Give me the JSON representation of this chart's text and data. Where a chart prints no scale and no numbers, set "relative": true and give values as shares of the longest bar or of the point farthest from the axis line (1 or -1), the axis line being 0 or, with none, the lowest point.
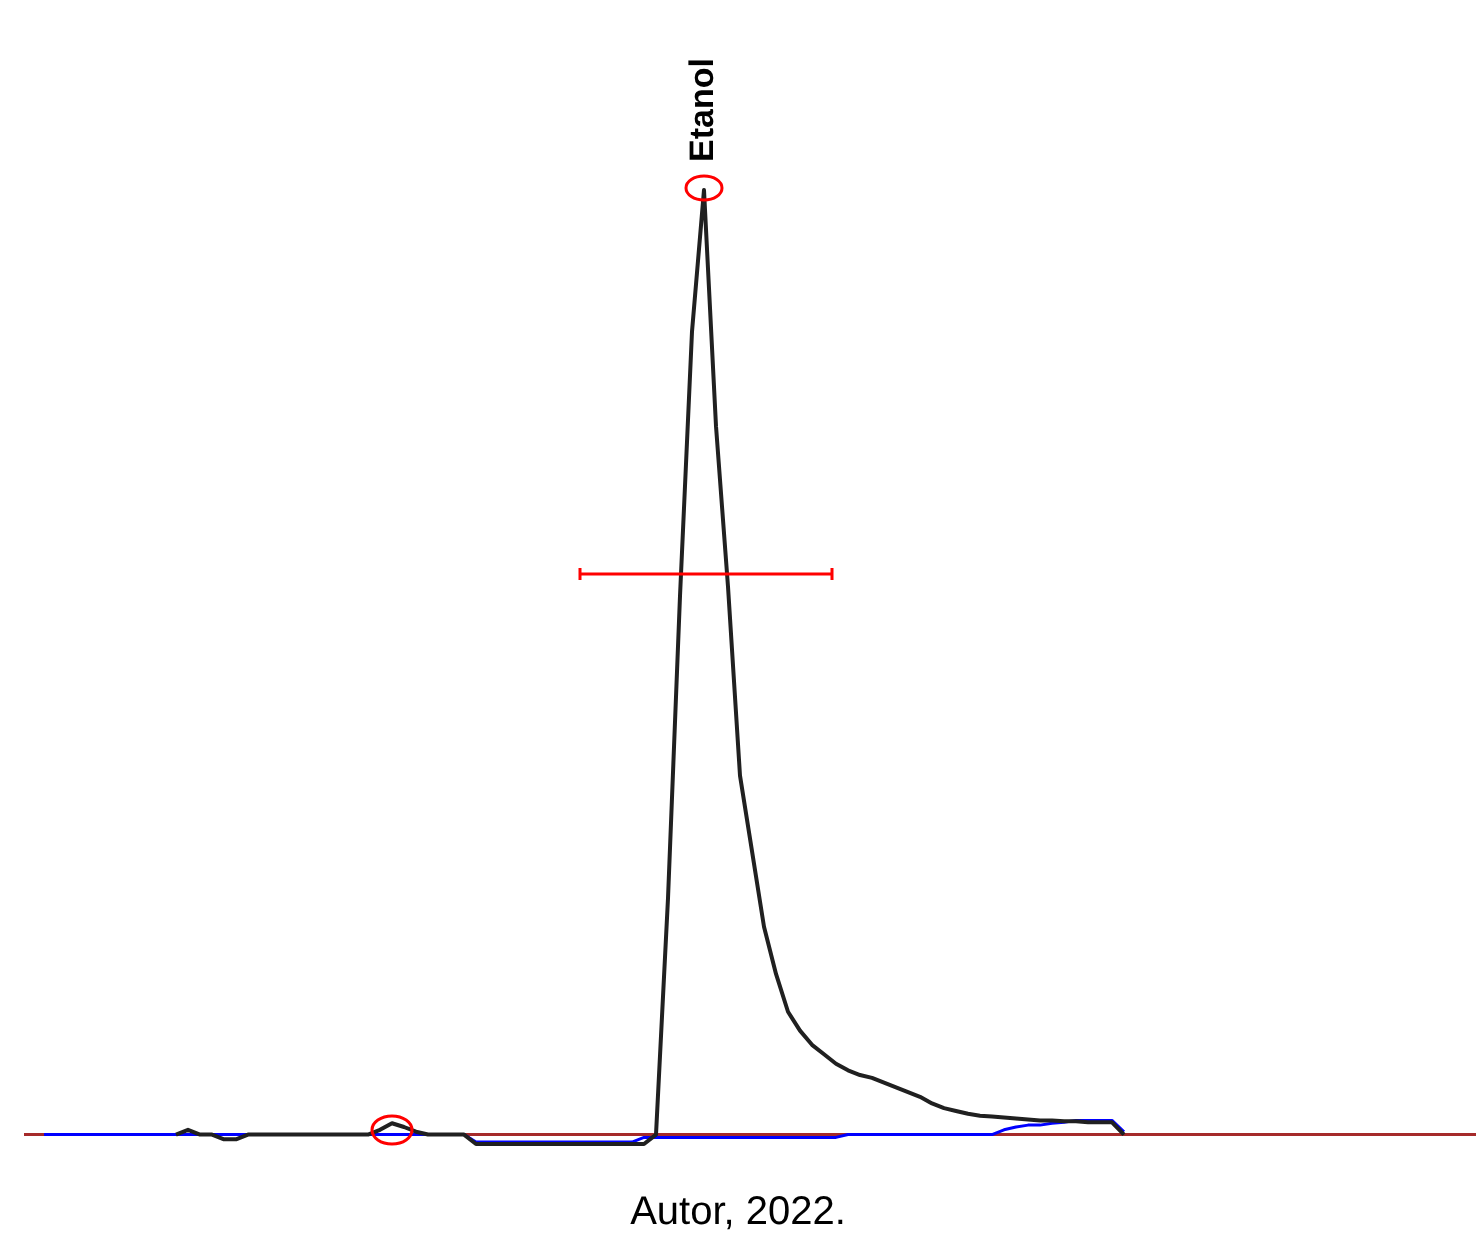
{
  "chart_data": {
    "type": "line",
    "relative": true,
    "categories": [
      null,
      null,
      null,
      null,
      null,
      null,
      null,
      null,
      null,
      null,
      null,
      null,
      null,
      null,
      null,
      null,
      null,
      null,
      null,
      null,
      null,
      null,
      null,
      null,
      null,
      null,
      null,
      null,
      null,
      null,
      null,
      null,
      null,
      null,
      null,
      null,
      null,
      null,
      null,
      null,
      null,
      null,
      null,
      null,
      null,
      null,
      null,
      null,
      null,
      null,
      null,
      null,
      null,
      null,
      null,
      null,
      null,
      null,
      null,
      null,
      null,
      null,
      null,
      null,
      null,
      null,
      null,
      null,
      null,
      null,
      null,
      null,
      null,
      null,
      null,
      null,
      null,
      null,
      null,
      null,
      null,
      null,
      null,
      null,
      null,
      null,
      null,
      null,
      null,
      null,
      null
    ],
    "series": [
      {
        "color": "#202020",
        "values": [
          null,
          null,
          null,
          null,
          null,
          null,
          null,
          null,
          null,
          null,
          null,
          0,
          0.005,
          0,
          0,
          -0.005,
          -0.005,
          0,
          0,
          0,
          0,
          0,
          0,
          0,
          0,
          0,
          0,
          0,
          0.005,
          0.012,
          0.008,
          0.003,
          0,
          0,
          0,
          0,
          -0.01,
          -0.01,
          -0.01,
          -0.01,
          -0.01,
          -0.01,
          -0.01,
          -0.01,
          -0.01,
          -0.01,
          -0.01,
          -0.01,
          -0.01,
          -0.01,
          -0.01,
          0,
          0.25,
          0.57,
          0.85,
          1,
          0.75,
          0.58,
          0.38,
          0.3,
          0.22,
          0.17,
          0.13,
          0.11,
          0.095,
          0.085,
          0.075,
          0.068,
          0.063,
          0.06,
          0.055,
          0.05,
          0.045,
          0.04,
          0.033,
          0.028,
          0.025,
          0.022,
          0.02,
          0.019,
          0.018,
          0.017,
          0.016,
          0.015,
          0.015,
          0.014,
          0.014,
          0.013,
          0.013,
          0.013,
          0
        ]
      },
      {
        "color": "#0000ff",
        "values": [
          0,
          0,
          0,
          0,
          0,
          0,
          0,
          0,
          0,
          0,
          0,
          0,
          0,
          0,
          0,
          0,
          0,
          0,
          0,
          0,
          0,
          0,
          0,
          0,
          0,
          0,
          0,
          0,
          0,
          0,
          0,
          0,
          0,
          0,
          0,
          0,
          -0.008,
          -0.008,
          -0.008,
          -0.008,
          -0.008,
          -0.008,
          -0.008,
          -0.008,
          -0.008,
          -0.008,
          -0.008,
          -0.008,
          -0.008,
          -0.008,
          -0.003,
          -0.003,
          -0.003,
          -0.003,
          -0.003,
          -0.003,
          -0.003,
          -0.003,
          -0.003,
          -0.003,
          -0.003,
          -0.003,
          -0.003,
          -0.003,
          -0.003,
          -0.003,
          -0.003,
          0,
          0,
          0,
          0,
          0,
          0,
          0,
          0,
          0,
          0,
          0,
          0,
          0,
          0.005,
          0.008,
          0.01,
          0.01,
          0.012,
          0.013,
          0.015,
          0.015,
          0.015,
          0.015,
          0.003
        ]
      }
    ],
    "ref_lines": [
      {
        "axis": "y",
        "value": 0,
        "color": "#a52a2a"
      }
    ],
    "annotations": [
      {
        "text": "Etanol",
        "y": 1
      },
      "Autor, 2022."
    ]
  }
}
